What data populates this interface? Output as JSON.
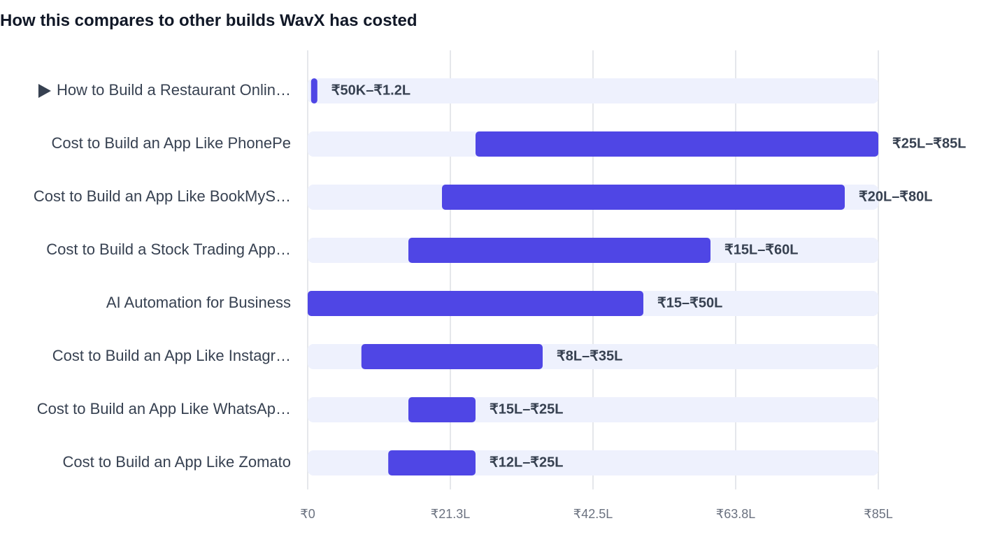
{
  "title": "How this compares to other builds WavX has costed",
  "colors": {
    "bar": "#4f46e5",
    "track": "#eef1fd",
    "grid": "#e5e7eb",
    "label": "#374151",
    "tick": "#6b7280",
    "title": "#111827"
  },
  "chart_data": {
    "type": "bar",
    "orientation": "horizontal",
    "subtype": "range",
    "title": "How this compares to other builds WavX has costed",
    "xlabel": "",
    "ylabel": "",
    "unit": "INR",
    "xlim": [
      0,
      85
    ],
    "x_unit_note": "values in lakh rupees",
    "grid": true,
    "xticks": [
      0,
      21.25,
      42.5,
      63.75,
      85
    ],
    "xtick_labels": [
      "₹0",
      "₹21.3L",
      "₹42.5L",
      "₹63.8L",
      "₹85L"
    ],
    "categories": [
      "How to Build a Restaurant Onlin…",
      "Cost to Build an App Like PhonePe",
      "Cost to Build an App Like BookMyS…",
      "Cost to Build a Stock Trading App…",
      "AI Automation for Business",
      "Cost to Build an App Like Instagr…",
      "Cost to Build an App Like WhatsAp…",
      "Cost to Build an App Like Zomato"
    ],
    "ranges": [
      [
        0.5,
        1.2
      ],
      [
        25,
        85
      ],
      [
        20,
        80
      ],
      [
        15,
        60
      ],
      [
        0,
        50
      ],
      [
        8,
        35
      ],
      [
        15,
        25
      ],
      [
        12,
        25
      ]
    ],
    "range_labels": [
      "₹50K–₹1.2L",
      "₹25L–₹85L",
      "₹20L–₹80L",
      "₹15L–₹60L",
      "₹15–₹50L",
      "₹8L–₹35L",
      "₹15L–₹25L",
      "₹12L–₹25L"
    ],
    "current_index": 0,
    "current_marker_icon": "triangle-right-icon"
  }
}
